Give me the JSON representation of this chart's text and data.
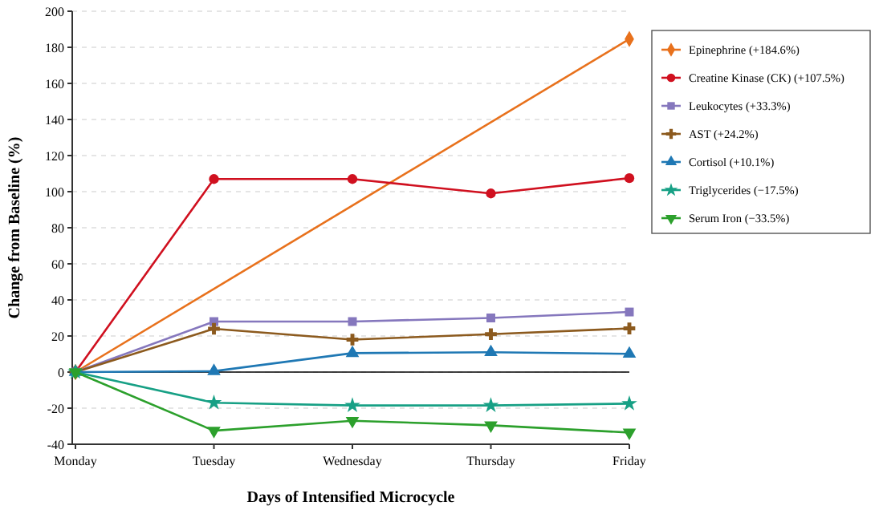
{
  "chart_data": {
    "type": "line",
    "xlabel": "Days of Intensified Microcycle",
    "ylabel": "Change from Baseline (%)",
    "categories": [
      "Monday",
      "Tuesday",
      "Wednesday",
      "Thursday",
      "Friday"
    ],
    "series": [
      {
        "name": "Epinephrine (+184.6%)",
        "color": "#e8711c",
        "marker": "diamond",
        "values": [
          0,
          null,
          null,
          null,
          184.6
        ]
      },
      {
        "name": "Creatine Kinase (CK) (+107.5%)",
        "color": "#d0101f",
        "marker": "circle",
        "values": [
          0,
          107,
          107,
          99,
          107.5
        ]
      },
      {
        "name": "Leukocytes (+33.3%)",
        "color": "#8577bd",
        "marker": "square",
        "values": [
          0,
          28,
          28,
          30,
          33.3
        ]
      },
      {
        "name": "AST (+24.2%)",
        "color": "#8c5a1e",
        "marker": "cross",
        "values": [
          0,
          24,
          18,
          21,
          24.2
        ]
      },
      {
        "name": "Cortisol (+10.1%)",
        "color": "#1f78b4",
        "marker": "triangle",
        "values": [
          0,
          0.5,
          10.5,
          11,
          10.1
        ]
      },
      {
        "name": "Triglycerides (−17.5%)",
        "color": "#17a085",
        "marker": "star",
        "values": [
          0,
          -17,
          -18.5,
          -18.5,
          -17.5
        ]
      },
      {
        "name": "Serum Iron (−33.5%)",
        "color": "#2ca02c",
        "marker": "triangle-down",
        "values": [
          0,
          -32.5,
          -27,
          -29.5,
          -33.5
        ]
      }
    ],
    "ylim": [
      -40,
      200
    ],
    "yticks": [
      -40,
      -20,
      0,
      20,
      40,
      60,
      80,
      100,
      120,
      140,
      160,
      180,
      200
    ],
    "grid": "y",
    "legend": "top right",
    "line_style": "solid",
    "ref_lines": [
      {
        "axis": "y",
        "value": 0,
        "color": "#000000"
      }
    ]
  }
}
